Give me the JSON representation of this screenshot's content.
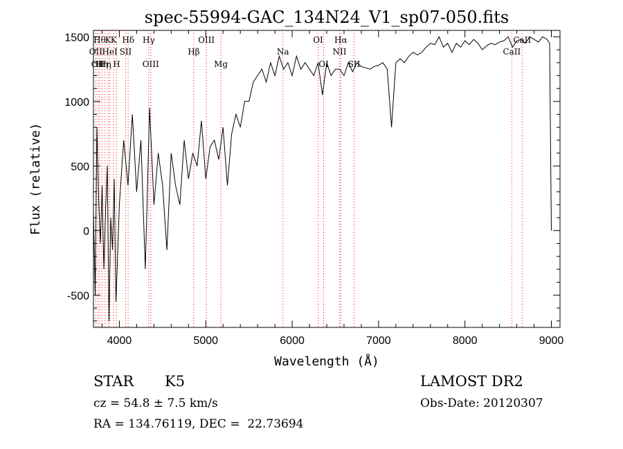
{
  "chart_data": {
    "type": "line",
    "title": "spec-55994-GAC_134N24_V1_sp07-050.fits",
    "xlabel": "Wavelength (Å)",
    "ylabel": "Flux (relative)",
    "xlim": [
      3700,
      9100
    ],
    "ylim": [
      -750,
      1550
    ],
    "x_ticks": [
      4000,
      5000,
      6000,
      7000,
      8000,
      9000
    ],
    "x_tick_labels": [
      "4000",
      "5000",
      "6000",
      "7000",
      "8000",
      "9000"
    ],
    "y_ticks": [
      -500,
      0,
      500,
      1000,
      1500
    ],
    "y_tick_labels": [
      "-500",
      "0",
      "500",
      "1000",
      "1500"
    ],
    "grid": false,
    "line_color": "#000000",
    "marker_color": "#ff0000",
    "series": [
      {
        "x": [
          3700,
          3720,
          3740,
          3760,
          3780,
          3800,
          3820,
          3840,
          3860,
          3880,
          3900,
          3920,
          3940,
          3960,
          3980,
          4000,
          4050,
          4100,
          4150,
          4200,
          4250,
          4300,
          4350,
          4400,
          4450,
          4500,
          4550,
          4600,
          4650,
          4700,
          4750,
          4800,
          4850,
          4900,
          4950,
          5000,
          5050,
          5100,
          5150,
          5200,
          5250,
          5300,
          5350,
          5400,
          5450,
          5500,
          5550,
          5600,
          5650,
          5700,
          5750,
          5800,
          5850,
          5900,
          5950,
          6000,
          6050,
          6100,
          6150,
          6200,
          6250,
          6300,
          6350,
          6400,
          6450,
          6500,
          6550,
          6600,
          6650,
          6700,
          6750,
          6800,
          6850,
          6900,
          6950,
          7000,
          7050,
          7100,
          7150,
          7200,
          7250,
          7300,
          7350,
          7400,
          7450,
          7500,
          7550,
          7600,
          7650,
          7700,
          7750,
          7800,
          7850,
          7900,
          7950,
          8000,
          8050,
          8100,
          8150,
          8200,
          8250,
          8300,
          8350,
          8400,
          8450,
          8500,
          8550,
          8600,
          8650,
          8700,
          8750,
          8800,
          8850,
          8900,
          8950,
          8980,
          9000
        ],
        "y": [
          150,
          -500,
          800,
          250,
          -100,
          350,
          -300,
          150,
          500,
          -700,
          100,
          -150,
          400,
          -550,
          -200,
          200,
          700,
          350,
          900,
          300,
          700,
          -300,
          950,
          200,
          600,
          350,
          -150,
          600,
          350,
          200,
          700,
          400,
          600,
          500,
          850,
          400,
          650,
          700,
          550,
          800,
          350,
          750,
          900,
          800,
          1000,
          1000,
          1150,
          1200,
          1250,
          1150,
          1300,
          1200,
          1350,
          1250,
          1300,
          1200,
          1350,
          1250,
          1300,
          1250,
          1200,
          1300,
          1050,
          1300,
          1200,
          1250,
          1250,
          1200,
          1300,
          1230,
          1300,
          1270,
          1260,
          1250,
          1270,
          1280,
          1300,
          1250,
          800,
          1300,
          1330,
          1300,
          1350,
          1380,
          1360,
          1380,
          1420,
          1450,
          1440,
          1500,
          1420,
          1450,
          1380,
          1450,
          1420,
          1470,
          1440,
          1480,
          1450,
          1400,
          1430,
          1450,
          1440,
          1460,
          1470,
          1500,
          1420,
          1470,
          1480,
          1450,
          1500,
          1480,
          1460,
          1500,
          1480,
          1450,
          0
        ]
      }
    ],
    "line_markers": [
      {
        "wavelength": 3727,
        "label": "OII",
        "row": 2
      },
      {
        "wavelength": 3750,
        "label": "OII",
        "row": 3
      },
      {
        "wavelength": 3771,
        "label": "Hθ",
        "row": 1
      },
      {
        "wavelength": 3798,
        "label": "Hη",
        "row": 3
      },
      {
        "wavelength": 3835,
        "label": "Hη",
        "row": 3
      },
      {
        "wavelength": 3869,
        "label": "K",
        "row": 1
      },
      {
        "wavelength": 3889,
        "label": "HeI",
        "row": 2
      },
      {
        "wavelength": 3934,
        "label": "K",
        "row": 1
      },
      {
        "wavelength": 3968,
        "label": "H",
        "row": 3
      },
      {
        "wavelength": 4072,
        "label": "SII",
        "row": 2
      },
      {
        "wavelength": 4102,
        "label": "Hδ",
        "row": 1
      },
      {
        "wavelength": 4340,
        "label": "Hγ",
        "row": 1
      },
      {
        "wavelength": 4363,
        "label": "OIII",
        "row": 3
      },
      {
        "wavelength": 4861,
        "label": "Hβ",
        "row": 2
      },
      {
        "wavelength": 5007,
        "label": "OIII",
        "row": 1
      },
      {
        "wavelength": 5175,
        "label": "Mg",
        "row": 3
      },
      {
        "wavelength": 5893,
        "label": "Na",
        "row": 2
      },
      {
        "wavelength": 6300,
        "label": "OI",
        "row": 1
      },
      {
        "wavelength": 6364,
        "label": "OI",
        "row": 3
      },
      {
        "wavelength": 6548,
        "label": "NII",
        "row": 2
      },
      {
        "wavelength": 6563,
        "label": "Hα",
        "row": 1
      },
      {
        "wavelength": 6717,
        "label": "SII",
        "row": 3
      },
      {
        "wavelength": 8542,
        "label": "CaII",
        "row": 2
      },
      {
        "wavelength": 8662,
        "label": "CaII",
        "row": 1
      }
    ]
  },
  "info": {
    "object_class": "STAR",
    "subclass": "K5",
    "cz": "cz = 54.8 ± 7.5 km/s",
    "coords": "RA = 134.76119, DEC =  22.73694",
    "survey": "LAMOST DR2",
    "obs_date": "Obs-Date: 20120307"
  }
}
